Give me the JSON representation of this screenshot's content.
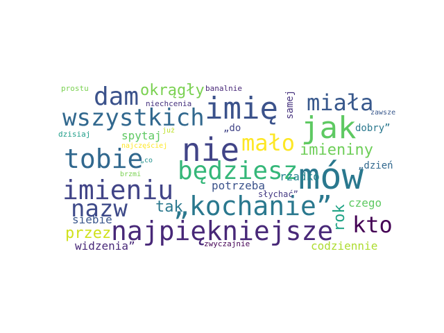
{
  "words": [
    {
      "text": "mów",
      "color": "#2a788e"
    },
    {
      "text": "nie",
      "color": "#414487"
    },
    {
      "text": "jak",
      "color": "#5ec962"
    },
    {
      "text": "imię",
      "color": "#3b528b"
    },
    {
      "text": "wszystkich",
      "color": "#31688e"
    },
    {
      "text": "„kochanie”",
      "color": "#2a788e"
    },
    {
      "text": "najpiękniejsze",
      "color": "#482878"
    },
    {
      "text": "imieniu",
      "color": "#414487"
    },
    {
      "text": "tobie",
      "color": "#31688e"
    },
    {
      "text": "będziesz",
      "color": "#35b779"
    },
    {
      "text": "dam",
      "color": "#3b528b"
    },
    {
      "text": "nazw",
      "color": "#3e4a89"
    },
    {
      "text": "miała",
      "color": "#38588c"
    },
    {
      "text": "mało",
      "color": "#fde725"
    },
    {
      "text": "kto",
      "color": "#440154"
    },
    {
      "text": "okrągły",
      "color": "#7ad151"
    },
    {
      "text": "imieniny",
      "color": "#6ece58"
    },
    {
      "text": "tak",
      "color": "#2a788e"
    },
    {
      "text": "przez",
      "color": "#d0e11c"
    },
    {
      "text": "rok",
      "color": "#20a386"
    },
    {
      "text": "spytaj",
      "color": "#5ec962"
    },
    {
      "text": "potrzeba",
      "color": "#3b528b"
    },
    {
      "text": "rzadko",
      "color": "#25858e"
    },
    {
      "text": "czego",
      "color": "#5ec962"
    },
    {
      "text": "siebie",
      "color": "#39568c"
    },
    {
      "text": "widzenia”",
      "color": "#482878"
    },
    {
      "text": "codziennie",
      "color": "#addc30"
    },
    {
      "text": "samej",
      "color": "#46337e"
    },
    {
      "text": "dobry”",
      "color": "#2a788e"
    },
    {
      "text": "„dzień",
      "color": "#31688e"
    },
    {
      "text": "„do",
      "color": "#414487"
    },
    {
      "text": "słychać”",
      "color": "#443983"
    },
    {
      "text": "zwyczajnie",
      "color": "#440154"
    },
    {
      "text": "prostu",
      "color": "#7ad151"
    },
    {
      "text": "banalnie",
      "color": "#482878"
    },
    {
      "text": "niechcenia",
      "color": "#46327e"
    },
    {
      "text": "zawsze",
      "color": "#38588c"
    },
    {
      "text": "dzisiaj",
      "color": "#1f9e89"
    },
    {
      "text": "już",
      "color": "#bddf26"
    },
    {
      "text": "najczęściej",
      "color": "#fde725"
    },
    {
      "text": "„co",
      "color": "#21918c"
    },
    {
      "text": "brzmi",
      "color": "#7ad151"
    }
  ]
}
